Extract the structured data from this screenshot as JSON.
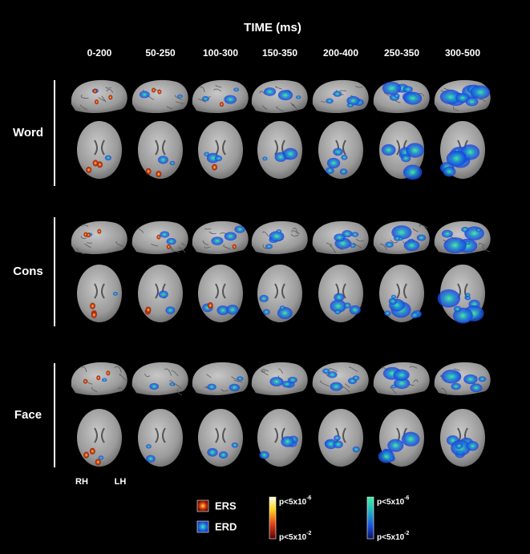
{
  "title": "TIME (ms)",
  "time_windows": [
    "0-200",
    "50-250",
    "100-300",
    "150-350",
    "200-400",
    "250-350",
    "300-500"
  ],
  "conditions": [
    "Word",
    "Cons",
    "Face"
  ],
  "hemispheres": {
    "right": "RH",
    "left": "LH"
  },
  "legend": {
    "ers": "ERS",
    "erd": "ERD"
  },
  "scales": {
    "ers": {
      "top": {
        "base": "p<5x10",
        "exp": "-6"
      },
      "bottom": {
        "base": "p<5x10",
        "exp": "-2"
      }
    },
    "erd": {
      "top": {
        "base": "p<5x10",
        "exp": "-6"
      },
      "bottom": {
        "base": "p<5x10",
        "exp": "-2"
      }
    }
  }
}
